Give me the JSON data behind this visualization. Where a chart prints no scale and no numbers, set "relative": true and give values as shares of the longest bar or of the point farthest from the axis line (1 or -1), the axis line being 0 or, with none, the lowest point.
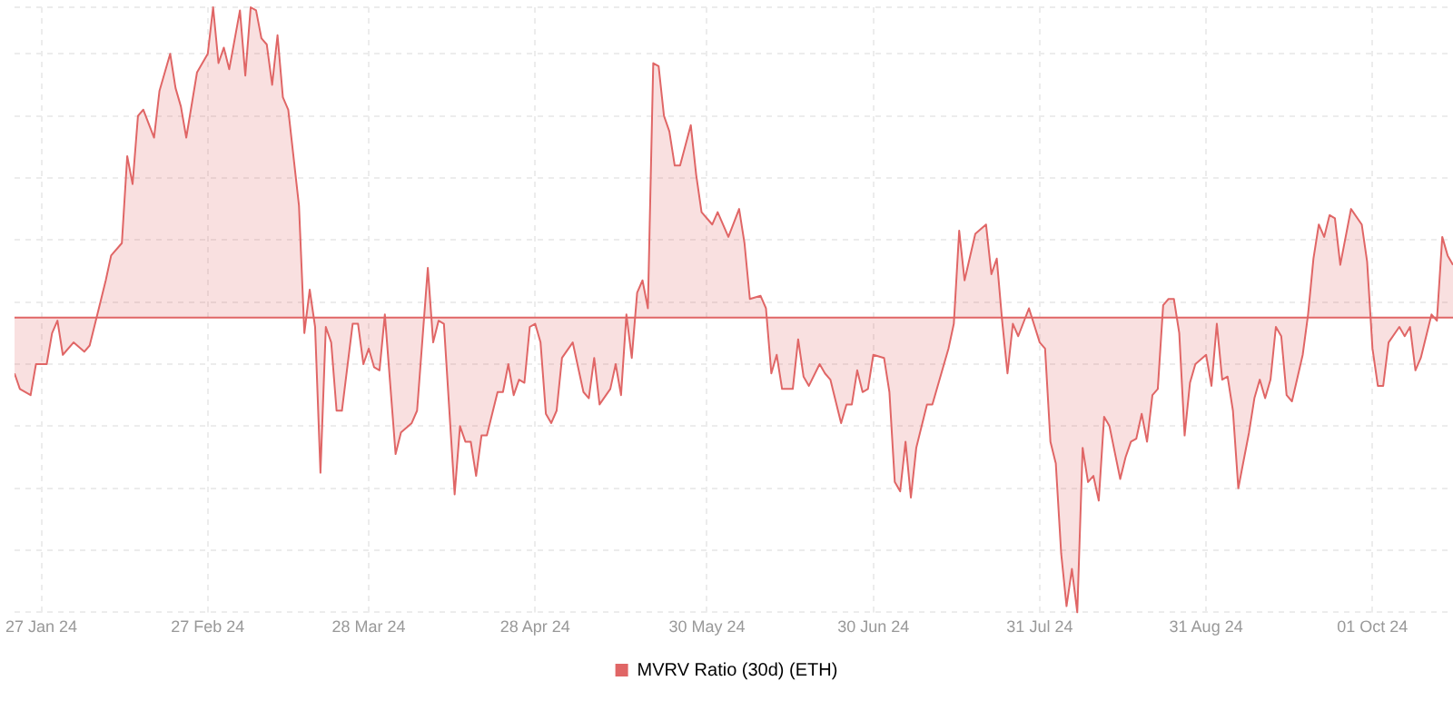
{
  "chart_data": {
    "type": "area",
    "relative": true,
    "grid": true,
    "legend": "bottom",
    "ref_lines": [
      {
        "axis": "y",
        "value": 0,
        "color": "#e06666"
      }
    ],
    "xlim": [
      "2024-01-22",
      "2024-10-16"
    ],
    "xticks": [
      {
        "value": "2024-01-27",
        "label": "27 Jan 24"
      },
      {
        "value": "2024-02-27",
        "label": "27 Feb 24"
      },
      {
        "value": "2024-03-28",
        "label": "28 Mar 24"
      },
      {
        "value": "2024-04-28",
        "label": "28 Apr 24"
      },
      {
        "value": "2024-05-30",
        "label": "30 May 24"
      },
      {
        "value": "2024-06-30",
        "label": "30 Jun 24"
      },
      {
        "value": "2024-07-31",
        "label": "31 Jul 24"
      },
      {
        "value": "2024-08-31",
        "label": "31 Aug 24"
      },
      {
        "value": "2024-10-01",
        "label": "01 Oct 24"
      }
    ],
    "series": [
      {
        "name": "MVRV Ratio (30d) (ETH)",
        "color": "#e06666",
        "x": [
          "2024-01-22",
          "2024-01-23",
          "2024-01-25",
          "2024-01-26",
          "2024-01-28",
          "2024-01-29",
          "2024-01-30",
          "2024-01-31",
          "2024-02-02",
          "2024-02-04",
          "2024-02-05",
          "2024-02-07",
          "2024-02-08",
          "2024-02-09",
          "2024-02-11",
          "2024-02-12",
          "2024-02-13",
          "2024-02-14",
          "2024-02-15",
          "2024-02-17",
          "2024-02-18",
          "2024-02-20",
          "2024-02-21",
          "2024-02-22",
          "2024-02-23",
          "2024-02-25",
          "2024-02-27",
          "2024-02-28",
          "2024-02-29",
          "2024-03-01",
          "2024-03-02",
          "2024-03-04",
          "2024-03-05",
          "2024-03-06",
          "2024-03-07",
          "2024-03-08",
          "2024-03-09",
          "2024-03-10",
          "2024-03-11",
          "2024-03-12",
          "2024-03-13",
          "2024-03-15",
          "2024-03-16",
          "2024-03-17",
          "2024-03-18",
          "2024-03-19",
          "2024-03-20",
          "2024-03-21",
          "2024-03-22",
          "2024-03-23",
          "2024-03-25",
          "2024-03-26",
          "2024-03-27",
          "2024-03-28",
          "2024-03-29",
          "2024-03-30",
          "2024-03-31",
          "2024-04-02",
          "2024-04-03",
          "2024-04-05",
          "2024-04-06",
          "2024-04-08",
          "2024-04-09",
          "2024-04-10",
          "2024-04-11",
          "2024-04-13",
          "2024-04-14",
          "2024-04-15",
          "2024-04-16",
          "2024-04-17",
          "2024-04-18",
          "2024-04-19",
          "2024-04-21",
          "2024-04-22",
          "2024-04-23",
          "2024-04-24",
          "2024-04-25",
          "2024-04-26",
          "2024-04-27",
          "2024-04-28",
          "2024-04-29",
          "2024-04-30",
          "2024-05-01",
          "2024-05-02",
          "2024-05-03",
          "2024-05-05",
          "2024-05-06",
          "2024-05-07",
          "2024-05-08",
          "2024-05-09",
          "2024-05-10",
          "2024-05-12",
          "2024-05-13",
          "2024-05-14",
          "2024-05-15",
          "2024-05-16",
          "2024-05-17",
          "2024-05-18",
          "2024-05-19",
          "2024-05-20",
          "2024-05-21",
          "2024-05-22",
          "2024-05-23",
          "2024-05-24",
          "2024-05-25",
          "2024-05-27",
          "2024-05-28",
          "2024-05-29",
          "2024-05-31",
          "2024-06-01",
          "2024-06-03",
          "2024-06-05",
          "2024-06-06",
          "2024-06-07",
          "2024-06-09",
          "2024-06-10",
          "2024-06-11",
          "2024-06-12",
          "2024-06-13",
          "2024-06-15",
          "2024-06-16",
          "2024-06-17",
          "2024-06-18",
          "2024-06-20",
          "2024-06-21",
          "2024-06-22",
          "2024-06-24",
          "2024-06-25",
          "2024-06-26",
          "2024-06-27",
          "2024-06-28",
          "2024-06-29",
          "2024-06-30",
          "2024-07-02",
          "2024-07-03",
          "2024-07-04",
          "2024-07-05",
          "2024-07-06",
          "2024-07-07",
          "2024-07-08",
          "2024-07-10",
          "2024-07-11",
          "2024-07-14",
          "2024-07-15",
          "2024-07-16",
          "2024-07-17",
          "2024-07-19",
          "2024-07-21",
          "2024-07-22",
          "2024-07-23",
          "2024-07-24",
          "2024-07-25",
          "2024-07-26",
          "2024-07-27",
          "2024-07-29",
          "2024-07-31",
          "2024-08-01",
          "2024-08-02",
          "2024-08-03",
          "2024-08-04",
          "2024-08-05",
          "2024-08-06",
          "2024-08-07",
          "2024-08-08",
          "2024-08-09",
          "2024-08-10",
          "2024-08-11",
          "2024-08-12",
          "2024-08-13",
          "2024-08-15",
          "2024-08-16",
          "2024-08-17",
          "2024-08-18",
          "2024-08-19",
          "2024-08-20",
          "2024-08-21",
          "2024-08-22",
          "2024-08-23",
          "2024-08-24",
          "2024-08-25",
          "2024-08-26",
          "2024-08-27",
          "2024-08-28",
          "2024-08-29",
          "2024-08-31",
          "2024-09-01",
          "2024-09-02",
          "2024-09-03",
          "2024-09-04",
          "2024-09-05",
          "2024-09-06",
          "2024-09-07",
          "2024-09-08",
          "2024-09-09",
          "2024-09-10",
          "2024-09-11",
          "2024-09-12",
          "2024-09-13",
          "2024-09-14",
          "2024-09-15",
          "2024-09-16",
          "2024-09-18",
          "2024-09-19",
          "2024-09-20",
          "2024-09-21",
          "2024-09-22",
          "2024-09-23",
          "2024-09-24",
          "2024-09-25",
          "2024-09-27",
          "2024-09-29",
          "2024-09-30",
          "2024-10-01",
          "2024-10-02",
          "2024-10-03",
          "2024-10-04",
          "2024-10-06",
          "2024-10-07",
          "2024-10-08",
          "2024-10-09",
          "2024-10-10",
          "2024-10-12",
          "2024-10-13",
          "2024-10-14",
          "2024-10-15",
          "2024-10-16"
        ],
        "values": [
          -0.18,
          -0.23,
          -0.25,
          -0.15,
          -0.15,
          -0.05,
          -0.01,
          -0.12,
          -0.08,
          -0.11,
          -0.09,
          0.05,
          0.12,
          0.2,
          0.24,
          0.52,
          0.43,
          0.65,
          0.67,
          0.58,
          0.73,
          0.85,
          0.74,
          0.68,
          0.58,
          0.79,
          0.85,
          1,
          0.82,
          0.87,
          0.8,
          0.99,
          0.78,
          1,
          0.99,
          0.9,
          0.88,
          0.75,
          0.91,
          0.71,
          0.67,
          0.36,
          -0.05,
          0.09,
          -0.03,
          -0.5,
          -0.03,
          -0.08,
          -0.3,
          -0.3,
          -0.02,
          -0.02,
          -0.15,
          -0.1,
          -0.16,
          -0.17,
          0.01,
          -0.44,
          -0.37,
          -0.34,
          -0.3,
          0.16,
          -0.08,
          -0.01,
          -0.02,
          -0.57,
          -0.35,
          -0.4,
          -0.4,
          -0.51,
          -0.38,
          -0.38,
          -0.24,
          -0.24,
          -0.15,
          -0.25,
          -0.2,
          -0.21,
          -0.03,
          -0.02,
          -0.08,
          -0.31,
          -0.34,
          -0.3,
          -0.13,
          -0.08,
          -0.16,
          -0.24,
          -0.26,
          -0.13,
          -0.28,
          -0.23,
          -0.15,
          -0.25,
          0.01,
          -0.13,
          0.08,
          0.12,
          0.03,
          0.82,
          0.81,
          0.65,
          0.6,
          0.49,
          0.49,
          0.62,
          0.46,
          0.34,
          0.3,
          0.34,
          0.26,
          0.35,
          0.24,
          0.06,
          0.07,
          0.03,
          -0.18,
          -0.12,
          -0.23,
          -0.23,
          -0.07,
          -0.19,
          -0.22,
          -0.15,
          -0.18,
          -0.2,
          -0.34,
          -0.28,
          -0.28,
          -0.17,
          -0.24,
          -0.23,
          -0.12,
          -0.13,
          -0.24,
          -0.53,
          -0.56,
          -0.4,
          -0.58,
          -0.42,
          -0.28,
          -0.28,
          -0.1,
          -0.02,
          0.28,
          0.12,
          0.27,
          0.3,
          0.14,
          0.19,
          -0.01,
          -0.18,
          -0.02,
          -0.06,
          0.03,
          -0.08,
          -0.1,
          -0.4,
          -0.47,
          -0.76,
          -0.93,
          -0.81,
          -0.95,
          -0.42,
          -0.53,
          -0.51,
          -0.59,
          -0.32,
          -0.35,
          -0.52,
          -0.45,
          -0.4,
          -0.39,
          -0.31,
          -0.4,
          -0.25,
          -0.23,
          0.04,
          0.06,
          0.06,
          -0.05,
          -0.38,
          -0.21,
          -0.15,
          -0.12,
          -0.22,
          -0.02,
          -0.2,
          -0.19,
          -0.3,
          -0.55,
          -0.46,
          -0.37,
          -0.26,
          -0.2,
          -0.26,
          -0.2,
          -0.03,
          -0.06,
          -0.25,
          -0.27,
          -0.12,
          0.01,
          0.19,
          0.3,
          0.26,
          0.33,
          0.32,
          0.17,
          0.35,
          0.3,
          0.18,
          -0.1,
          -0.22,
          -0.22,
          -0.08,
          -0.03,
          -0.06,
          -0.03,
          -0.17,
          -0.13,
          0.01,
          -0.01,
          0.26,
          0.2,
          0.17
        ]
      }
    ]
  }
}
